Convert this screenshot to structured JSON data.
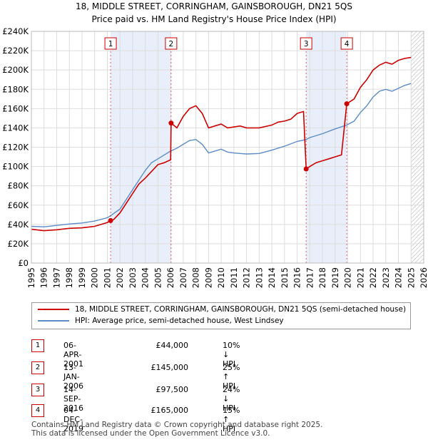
{
  "title_line1": "18, MIDDLE STREET, CORRINGHAM, GAINSBOROUGH, DN21 5QS",
  "title_line2": "Price paid vs. HM Land Registry's House Price Index (HPI)",
  "colors": {
    "property": "#cc0000",
    "hpi": "#5b8cc8",
    "shade": "#e8eefa",
    "grid": "#dddddd"
  },
  "chart_data": {
    "type": "line",
    "xlim": [
      1995,
      2026
    ],
    "ylim": [
      0,
      240000
    ],
    "yticks": [
      0,
      20000,
      40000,
      60000,
      80000,
      100000,
      120000,
      140000,
      160000,
      180000,
      200000,
      220000,
      240000
    ],
    "ytick_labels": [
      "£0",
      "£20K",
      "£40K",
      "£60K",
      "£80K",
      "£100K",
      "£120K",
      "£140K",
      "£160K",
      "£180K",
      "£200K",
      "£220K",
      "£240K"
    ],
    "xticks": [
      "1995",
      "1996",
      "1997",
      "1998",
      "1999",
      "2000",
      "2001",
      "2002",
      "2003",
      "2004",
      "2005",
      "2006",
      "2007",
      "2008",
      "2009",
      "2010",
      "2011",
      "2012",
      "2013",
      "2014",
      "2015",
      "2016",
      "2017",
      "2018",
      "2019",
      "2020",
      "2021",
      "2022",
      "2023",
      "2024",
      "2025",
      "2026"
    ],
    "shaded_periods": [
      [
        2001.26,
        2006.04
      ],
      [
        2016.71,
        2019.92
      ]
    ],
    "hatch_from": 2025.0,
    "series": [
      {
        "name": "18, MIDDLE STREET, CORRINGHAM, GAINSBOROUGH, DN21 5QS (semi-detached house)",
        "points": [
          [
            1995.0,
            35000
          ],
          [
            1996.0,
            33500
          ],
          [
            1997.0,
            34500
          ],
          [
            1998.0,
            36000
          ],
          [
            1999.0,
            36500
          ],
          [
            2000.0,
            38000
          ],
          [
            2001.0,
            42000
          ],
          [
            2001.26,
            44000
          ],
          [
            2001.5,
            45000
          ],
          [
            2002.0,
            52000
          ],
          [
            2002.5,
            62000
          ],
          [
            2003.0,
            72000
          ],
          [
            2003.5,
            82000
          ],
          [
            2004.0,
            88000
          ],
          [
            2004.5,
            95000
          ],
          [
            2005.0,
            102000
          ],
          [
            2005.5,
            104000
          ],
          [
            2006.0,
            107000
          ],
          [
            2006.04,
            145000
          ],
          [
            2006.5,
            140000
          ],
          [
            2007.0,
            152000
          ],
          [
            2007.5,
            160000
          ],
          [
            2008.0,
            163000
          ],
          [
            2008.5,
            155000
          ],
          [
            2009.0,
            140000
          ],
          [
            2009.5,
            142000
          ],
          [
            2010.0,
            144000
          ],
          [
            2010.5,
            140000
          ],
          [
            2011.0,
            141000
          ],
          [
            2011.5,
            142000
          ],
          [
            2012.0,
            140000
          ],
          [
            2013.0,
            140000
          ],
          [
            2014.0,
            143000
          ],
          [
            2014.5,
            146000
          ],
          [
            2015.0,
            147000
          ],
          [
            2015.5,
            149000
          ],
          [
            2016.0,
            155000
          ],
          [
            2016.5,
            157000
          ],
          [
            2016.71,
            97500
          ],
          [
            2017.0,
            100000
          ],
          [
            2017.5,
            104000
          ],
          [
            2018.0,
            106000
          ],
          [
            2018.5,
            108000
          ],
          [
            2019.0,
            110000
          ],
          [
            2019.5,
            112000
          ],
          [
            2019.92,
            165000
          ],
          [
            2020.5,
            170000
          ],
          [
            2021.0,
            182000
          ],
          [
            2021.5,
            190000
          ],
          [
            2022.0,
            200000
          ],
          [
            2022.5,
            205000
          ],
          [
            2023.0,
            208000
          ],
          [
            2023.5,
            206000
          ],
          [
            2024.0,
            210000
          ],
          [
            2024.5,
            212000
          ],
          [
            2025.0,
            213000
          ]
        ]
      },
      {
        "name": "HPI: Average price, semi-detached house, West Lindsey",
        "points": [
          [
            1995.0,
            38000
          ],
          [
            1996.0,
            37500
          ],
          [
            1997.0,
            39000
          ],
          [
            1998.0,
            40500
          ],
          [
            1999.0,
            41500
          ],
          [
            2000.0,
            43500
          ],
          [
            2001.0,
            47000
          ],
          [
            2001.26,
            49000
          ],
          [
            2002.0,
            56000
          ],
          [
            2002.5,
            66000
          ],
          [
            2003.0,
            76000
          ],
          [
            2003.5,
            86000
          ],
          [
            2004.0,
            96000
          ],
          [
            2004.5,
            104000
          ],
          [
            2005.0,
            108000
          ],
          [
            2005.5,
            112000
          ],
          [
            2006.0,
            116000
          ],
          [
            2006.5,
            119000
          ],
          [
            2007.0,
            123000
          ],
          [
            2007.5,
            127000
          ],
          [
            2008.0,
            128000
          ],
          [
            2008.5,
            123000
          ],
          [
            2009.0,
            114000
          ],
          [
            2009.5,
            116000
          ],
          [
            2010.0,
            118000
          ],
          [
            2010.5,
            115000
          ],
          [
            2011.0,
            114000
          ],
          [
            2011.5,
            113500
          ],
          [
            2012.0,
            113000
          ],
          [
            2013.0,
            113500
          ],
          [
            2014.0,
            117000
          ],
          [
            2015.0,
            121000
          ],
          [
            2016.0,
            126000
          ],
          [
            2016.71,
            128000
          ],
          [
            2017.0,
            130000
          ],
          [
            2018.0,
            134000
          ],
          [
            2019.0,
            139000
          ],
          [
            2019.92,
            143000
          ],
          [
            2020.5,
            147000
          ],
          [
            2021.0,
            156000
          ],
          [
            2021.5,
            163000
          ],
          [
            2022.0,
            172000
          ],
          [
            2022.5,
            178000
          ],
          [
            2023.0,
            180000
          ],
          [
            2023.5,
            178000
          ],
          [
            2024.0,
            181000
          ],
          [
            2024.5,
            184000
          ],
          [
            2025.0,
            186000
          ]
        ]
      }
    ],
    "sales": [
      {
        "label": "1",
        "x": 2001.26,
        "price": 44000
      },
      {
        "label": "2",
        "x": 2006.04,
        "price": 145000
      },
      {
        "label": "3",
        "x": 2016.71,
        "price": 97500
      },
      {
        "label": "4",
        "x": 2019.92,
        "price": 165000
      }
    ]
  },
  "legend": {
    "property_label": "18, MIDDLE STREET, CORRINGHAM, GAINSBOROUGH, DN21 5QS (semi-detached house)",
    "hpi_label": "HPI: Average price, semi-detached house, West Lindsey"
  },
  "transactions": [
    {
      "num": "1",
      "date": "06-APR-2001",
      "price": "£44,000",
      "hpi": "10% ↓ HPI"
    },
    {
      "num": "2",
      "date": "13-JAN-2006",
      "price": "£145,000",
      "hpi": "25% ↑ HPI"
    },
    {
      "num": "3",
      "date": "14-SEP-2016",
      "price": "£97,500",
      "hpi": "24% ↓ HPI"
    },
    {
      "num": "4",
      "date": "04-DEC-2019",
      "price": "£165,000",
      "hpi": "15% ↑ HPI"
    }
  ],
  "footer": {
    "line1": "Contains HM Land Registry data © Crown copyright and database right 2025.",
    "line2": "This data is licensed under the Open Government Licence v3.0."
  }
}
